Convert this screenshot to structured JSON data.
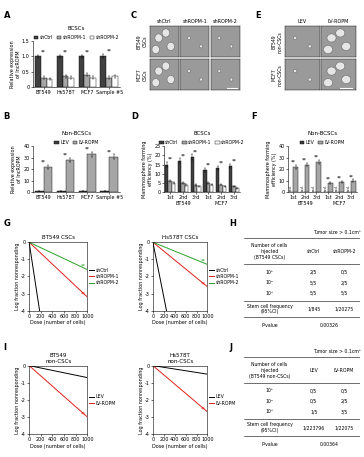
{
  "chart_data": [
    {
      "type": "bar",
      "panel": "A",
      "title": "BCSCs",
      "ylabel": "Relative expression\nof lncROPM",
      "categories": [
        "BT549",
        "Hs578T",
        "MCF7",
        "Sample #5"
      ],
      "series": [
        {
          "name": "shCtrl",
          "color": "#404040",
          "values": [
            1.0,
            1.0,
            1.0,
            1.0
          ],
          "errors": [
            0.05,
            0.06,
            0.05,
            0.07
          ]
        },
        {
          "name": "shROPM-1",
          "color": "#a6a6a6",
          "values": [
            0.3,
            0.35,
            0.4,
            0.3
          ],
          "errors": [
            0.04,
            0.05,
            0.05,
            0.04
          ]
        },
        {
          "name": "shROPM-2",
          "color": "#ffffff",
          "values": [
            0.25,
            0.3,
            0.3,
            0.35
          ],
          "errors": [
            0.04,
            0.04,
            0.05,
            0.05
          ]
        }
      ],
      "ylim": [
        0,
        1.5
      ],
      "yticks": [
        0,
        0.5,
        {
          "value": 1,
          "label": "1.0"
        },
        1.5
      ],
      "significance": "**",
      "legend": "top"
    },
    {
      "type": "bar",
      "panel": "B",
      "title": "Non-BCSCs",
      "ylabel": "Relative expression\nof lncROPM",
      "categories": [
        "BT549",
        "Hs578T",
        "MCF7",
        "Sample #5"
      ],
      "series": [
        {
          "name": "LEV",
          "color": "#404040",
          "values": [
            1,
            1,
            1,
            1
          ],
          "errors": [
            0.2,
            0.2,
            0.2,
            0.2
          ]
        },
        {
          "name": "LV-ROPM",
          "color": "#a6a6a6",
          "values": [
            22,
            28,
            33,
            31
          ],
          "errors": [
            1.5,
            1.8,
            2,
            1.8
          ]
        }
      ],
      "ylim": [
        0,
        40
      ],
      "yticks": [
        0,
        10,
        20,
        30,
        40
      ],
      "significance": "**",
      "legend": "top"
    },
    {
      "type": "bar",
      "panel": "D",
      "title": "BCSCs",
      "ylabel": "Mammosphere forming\nefficiency (%)",
      "categories": [
        "1st",
        "2nd",
        "3rd",
        "1st",
        "2nd",
        "3rd"
      ],
      "group_labels": [
        "BT549",
        "MCF7"
      ],
      "series": [
        {
          "name": "shCtrl",
          "color": "#404040",
          "values": [
            15,
            17,
            19,
            12,
            13,
            14
          ],
          "errors": [
            1.2,
            1.3,
            1.5,
            1,
            1,
            1.1
          ]
        },
        {
          "name": "shROPM-1",
          "color": "#a6a6a6",
          "values": [
            6,
            5,
            4,
            5,
            4,
            3
          ],
          "errors": [
            0.6,
            0.5,
            0.5,
            0.5,
            0.4,
            0.4
          ]
        },
        {
          "name": "shROPM-2",
          "color": "#ffffff",
          "values": [
            5,
            4,
            3,
            4,
            3,
            2
          ],
          "errors": [
            0.5,
            0.5,
            0.4,
            0.4,
            0.4,
            0.3
          ]
        }
      ],
      "ylim": [
        0,
        25
      ],
      "yticks": [
        0,
        5,
        10,
        15,
        20,
        25
      ],
      "significance": "**",
      "legend": "top"
    },
    {
      "type": "bar",
      "panel": "F",
      "title": "Non-BCSCs",
      "ylabel": "Mammosphere forming\nefficiency (%)",
      "categories": [
        "1st",
        "2nd",
        "3rd",
        "1st",
        "2nd",
        "3rd"
      ],
      "group_labels": [
        "BT549",
        "MCF7"
      ],
      "series": [
        {
          "name": "LEV",
          "color": "#404040",
          "values": [
            0,
            0,
            0,
            0,
            0,
            0
          ],
          "annotation": "n.d."
        },
        {
          "name": "LV-ROPM",
          "color": "#a6a6a6",
          "values": [
            22,
            24,
            26,
            8,
            9,
            10
          ],
          "errors": [
            1.5,
            1.6,
            1.8,
            0.8,
            0.8,
            0.9
          ]
        }
      ],
      "ylim": [
        0,
        40
      ],
      "yticks": [
        0,
        10,
        20,
        30,
        40
      ],
      "significance": "**",
      "legend": "top"
    },
    {
      "type": "line",
      "panel": "G",
      "title": "BT549 CSCs",
      "xlabel": "Dose (number of cells)",
      "ylabel": "Log fraction nonresponding",
      "series": [
        {
          "name": "shCtrl",
          "color": "#000000",
          "x": [
            0,
            180
          ],
          "values": [
            0,
            -4
          ]
        },
        {
          "name": "shROPM-1",
          "color": "#e0201b",
          "x": [
            0,
            1000
          ],
          "values": [
            0,
            -3.2
          ],
          "significance": "**"
        },
        {
          "name": "shROPM-2",
          "color": "#2ca02c",
          "x": [
            0,
            1000
          ],
          "values": [
            0,
            -1.6
          ],
          "significance": "**"
        }
      ],
      "xlim": [
        0,
        1000
      ],
      "xticks": [
        0,
        200,
        400,
        600,
        800,
        1000
      ],
      "ylim": [
        -4,
        0
      ],
      "yticks": [
        -4,
        -3,
        -2,
        -1,
        0
      ],
      "legend": "right"
    },
    {
      "type": "line",
      "title": "Hs578T CSCs",
      "xlabel": "Dose (number of cells)",
      "ylabel": "Log fraction nonresponding",
      "series": [
        {
          "name": "shCtrl",
          "color": "#000000",
          "x": [
            0,
            250
          ],
          "values": [
            0,
            -4
          ]
        },
        {
          "name": "shROPM-1",
          "color": "#e0201b",
          "x": [
            0,
            1000
          ],
          "values": [
            0,
            -2.6
          ],
          "significance": "**"
        },
        {
          "name": "shROPM-2",
          "color": "#2ca02c",
          "x": [
            0,
            1000
          ],
          "values": [
            0,
            -1.3
          ],
          "significance": "**"
        }
      ],
      "xlim": [
        0,
        1000
      ],
      "xticks": [
        0,
        200,
        400,
        600,
        800,
        1000
      ],
      "ylim": [
        -4,
        0
      ],
      "yticks": [
        -4,
        -3,
        -2,
        -1,
        0
      ],
      "legend": "right"
    },
    {
      "type": "line",
      "panel": "I",
      "title": "BT549\nnon-CSCs",
      "xlabel": "Dose (number of cells)",
      "ylabel": "Log fraction nonresponding",
      "series": [
        {
          "name": "LEV",
          "color": "#000000",
          "x": [
            0,
            1000
          ],
          "values": [
            0,
            -0.7
          ]
        },
        {
          "name": "LV-ROPM",
          "color": "#e0201b",
          "x": [
            0,
            1000
          ],
          "values": [
            0,
            -3.0
          ],
          "significance": "**"
        }
      ],
      "xlim": [
        0,
        1000
      ],
      "xticks": [
        0,
        200,
        400,
        600,
        800,
        1000
      ],
      "ylim": [
        -4,
        0
      ],
      "yticks": [
        -4,
        -3,
        -2,
        -1,
        0
      ],
      "legend": "right"
    },
    {
      "type": "line",
      "title": "Hs578T\nnon-CSCs",
      "xlabel": "Dose (number of cells)",
      "ylabel": "Log fraction nonresponding",
      "series": [
        {
          "name": "LEV",
          "color": "#000000",
          "x": [
            0,
            1000
          ],
          "values": [
            0,
            -0.5
          ]
        },
        {
          "name": "LV-ROPM",
          "color": "#e0201b",
          "x": [
            0,
            1000
          ],
          "values": [
            0,
            -2.7
          ],
          "significance": "**"
        }
      ],
      "xlim": [
        0,
        1000
      ],
      "xticks": [
        0,
        200,
        400,
        600,
        800,
        1000
      ],
      "ylim": [
        -4,
        0
      ],
      "yticks": [
        -4,
        -3,
        -2,
        -1,
        0
      ],
      "legend": "right"
    }
  ],
  "image_panels": [
    {
      "panel": "C",
      "columns": [
        "shCtrl",
        "shROPM-1",
        "shROPM-2"
      ],
      "rows": [
        "BT549\nCSCs",
        "MCF7\nCSCs"
      ]
    },
    {
      "panel": "E",
      "columns": [
        "LEV",
        "LV-ROPM"
      ],
      "rows": [
        "BT549\nnon-CSCs",
        "MCF7\nnon-CSCs"
      ]
    }
  ],
  "tables": [
    {
      "panel": "H",
      "title": "Tumor size > 0.1cm³",
      "header": [
        "Number of cells\ninjected\n(BT549 CSCs)",
        "shCtrl",
        "shROPM-2"
      ],
      "rows": [
        [
          "10³",
          "2/5",
          "0/5"
        ],
        [
          "10⁴",
          "5/5",
          "2/5"
        ],
        [
          "10⁵",
          "5/5",
          "5/5"
        ],
        [
          "Stem cell frequency\n(95%CI)",
          "1/845",
          "1/20275"
        ]
      ],
      "p_value": [
        "P-value",
        "0.00326"
      ]
    },
    {
      "panel": "J",
      "title": "Tumor size > 0.1cm³",
      "header": [
        "Number of cells\ninjected\n(BT549 non-CSCs)",
        "LEV",
        "LV-ROPM"
      ],
      "rows": [
        [
          "10³",
          "0/5",
          "0/5"
        ],
        [
          "10⁴",
          "0/5",
          "2/5"
        ],
        [
          "10⁵",
          "1/5",
          "3/5"
        ],
        [
          "Stem cell frequency\n(95%CI)",
          "1/223796",
          "1/22075"
        ]
      ],
      "p_value": [
        "P-value",
        "0.00364"
      ]
    }
  ]
}
